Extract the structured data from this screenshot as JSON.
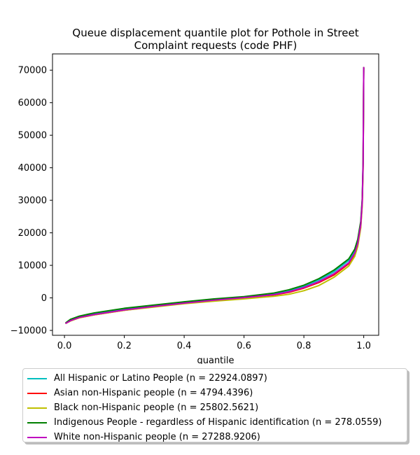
{
  "chart_data": {
    "type": "line",
    "title_lines": [
      "Queue displacement quantile plot for Pothole in Street",
      "Complaint  requests (code PHF)"
    ],
    "xlabel": "quantile",
    "ylabel": "",
    "xlim": [
      -0.04,
      1.05
    ],
    "ylim": [
      -11500,
      75000
    ],
    "xticks": [
      0.0,
      0.2,
      0.4,
      0.6,
      0.8,
      1.0
    ],
    "xtick_labels": [
      "0.0",
      "0.2",
      "0.4",
      "0.6",
      "0.8",
      "1.0"
    ],
    "yticks": [
      -10000,
      0,
      10000,
      20000,
      30000,
      40000,
      50000,
      60000,
      70000
    ],
    "ytick_labels": [
      "−10000",
      "0",
      "10000",
      "20000",
      "30000",
      "40000",
      "50000",
      "60000",
      "70000"
    ],
    "legend_position": "below",
    "series": [
      {
        "name": "All Hispanic or Latino People (n = 22924.0897)",
        "color": "#00bfbf",
        "x": [
          0.005,
          0.02,
          0.05,
          0.1,
          0.2,
          0.3,
          0.4,
          0.5,
          0.6,
          0.7,
          0.75,
          0.8,
          0.85,
          0.9,
          0.95,
          0.97,
          0.98,
          0.99,
          0.995,
          0.998,
          1.0
        ],
        "y": [
          -7700,
          -6700,
          -5700,
          -4800,
          -3400,
          -2300,
          -1300,
          -400,
          300,
          1300,
          2300,
          3600,
          5500,
          8000,
          11500,
          14500,
          17500,
          23000,
          30000,
          42000,
          70800
        ]
      },
      {
        "name": "Asian non-Hispanic people (n = 4794.4396)",
        "color": "#ff0000",
        "x": [
          0.005,
          0.02,
          0.05,
          0.1,
          0.2,
          0.3,
          0.4,
          0.5,
          0.6,
          0.7,
          0.75,
          0.8,
          0.85,
          0.9,
          0.95,
          0.97,
          0.98,
          0.99,
          0.995,
          0.998,
          1.0
        ],
        "y": [
          -7700,
          -7000,
          -6100,
          -5200,
          -3800,
          -2700,
          -1700,
          -800,
          0,
          900,
          1700,
          3000,
          4700,
          7000,
          10500,
          13500,
          16500,
          22000,
          29000,
          41000,
          70800
        ]
      },
      {
        "name": "Black non-Hispanic people (n = 25802.5621)",
        "color": "#bfbf00",
        "x": [
          0.005,
          0.02,
          0.05,
          0.1,
          0.2,
          0.3,
          0.4,
          0.5,
          0.6,
          0.7,
          0.75,
          0.8,
          0.85,
          0.9,
          0.95,
          0.97,
          0.98,
          0.99,
          0.995,
          0.998,
          1.0
        ],
        "y": [
          -7800,
          -7100,
          -6100,
          -5200,
          -3800,
          -2800,
          -1800,
          -1000,
          -300,
          500,
          1100,
          2200,
          3800,
          6300,
          9800,
          12800,
          15800,
          21500,
          28500,
          40500,
          70800
        ]
      },
      {
        "name": "Indigenous People - regardless of Hispanic identification (n = 278.0559)",
        "color": "#008000",
        "x": [
          0.005,
          0.02,
          0.05,
          0.1,
          0.2,
          0.3,
          0.4,
          0.5,
          0.6,
          0.7,
          0.75,
          0.8,
          0.85,
          0.9,
          0.95,
          0.97,
          0.98,
          0.99,
          0.995,
          0.998,
          1.0
        ],
        "y": [
          -7600,
          -6600,
          -5600,
          -4600,
          -3200,
          -2200,
          -1200,
          -300,
          400,
          1500,
          2500,
          3900,
          5900,
          8500,
          12000,
          15000,
          18000,
          23500,
          30500,
          42500,
          70800
        ]
      },
      {
        "name": "White non-Hispanic people (n = 27288.9206)",
        "color": "#bf00bf",
        "x": [
          0.005,
          0.02,
          0.05,
          0.1,
          0.2,
          0.3,
          0.4,
          0.5,
          0.6,
          0.7,
          0.75,
          0.8,
          0.85,
          0.9,
          0.95,
          0.97,
          0.98,
          0.99,
          0.995,
          0.998,
          1.0
        ],
        "y": [
          -7800,
          -7000,
          -6000,
          -5100,
          -3700,
          -2600,
          -1600,
          -700,
          100,
          1000,
          1900,
          3200,
          5000,
          7400,
          10800,
          13800,
          16800,
          22500,
          29500,
          41500,
          70800
        ]
      }
    ]
  }
}
